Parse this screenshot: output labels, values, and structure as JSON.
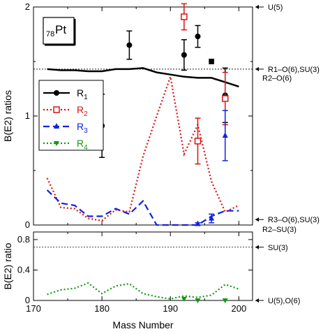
{
  "chart_data": [
    {
      "type": "line",
      "panel": "upper",
      "ylabel": "B(E2) ratios",
      "xlim": [
        170,
        202
      ],
      "ylim": [
        0,
        2
      ],
      "yticks": [
        "0",
        "1",
        "2"
      ],
      "nucleus": {
        "mass_prefix": "78",
        "symbol": "Pt"
      },
      "legend": [
        {
          "label": "R",
          "sub": "1",
          "color": "#000000"
        },
        {
          "label": "R",
          "sub": "2",
          "color": "#dd1111"
        },
        {
          "label": "R",
          "sub": "3",
          "color": "#1122dd"
        },
        {
          "label": "R",
          "sub": "4",
          "color": "#119911"
        }
      ],
      "reference_lines": [
        {
          "y": 1.43,
          "label": "R1-O(6),SU(3) R2-O(6)",
          "style": "dotted"
        }
      ],
      "right_annotations": [
        {
          "text": "U(5)",
          "y": 2.0
        },
        {
          "text": "R1–O(6),SU(3)",
          "y": 1.43
        },
        {
          "text": "R2–O(6)",
          "y": 1.36
        },
        {
          "text": "R3–O(6),SU(3)",
          "y": 0.05
        },
        {
          "text": "R2–SU(3)",
          "y": -0.05
        }
      ],
      "series": [
        {
          "name": "R1",
          "kind": "theory",
          "color": "#000000",
          "dash": "none",
          "x": [
            172,
            174,
            176,
            178,
            180,
            182,
            184,
            186,
            188,
            190,
            192,
            194,
            196,
            198,
            200
          ],
          "y": [
            1.43,
            1.42,
            1.42,
            1.41,
            1.41,
            1.43,
            1.43,
            1.44,
            1.4,
            1.38,
            1.36,
            1.35,
            1.35,
            1.31,
            1.27
          ]
        },
        {
          "name": "R2",
          "kind": "theory",
          "color": "#dd1111",
          "dash": "dot",
          "x": [
            172,
            174,
            176,
            178,
            180,
            182,
            184,
            186,
            188,
            190,
            192,
            194,
            196,
            198,
            200
          ],
          "y": [
            0.43,
            0.16,
            0.15,
            0.06,
            0.04,
            0.14,
            0.12,
            0.63,
            1.0,
            1.36,
            0.65,
            0.92,
            0.4,
            0.12,
            0.18
          ]
        },
        {
          "name": "R3",
          "kind": "theory",
          "color": "#1122dd",
          "dash": "dash",
          "x": [
            172,
            174,
            176,
            178,
            180,
            182,
            184,
            186,
            188,
            190,
            192,
            194,
            196,
            198,
            200
          ],
          "y": [
            0.32,
            0.2,
            0.18,
            0.08,
            0.08,
            0.15,
            0.1,
            0.22,
            0.0,
            0.0,
            0.0,
            0.0,
            0.08,
            0.13,
            0.13
          ]
        }
      ],
      "experiment": [
        {
          "series": "R1",
          "color": "#000000",
          "marker": "circle",
          "x": 180,
          "y": 0.91,
          "err": 0.29
        },
        {
          "series": "R1",
          "color": "#000000",
          "marker": "circle",
          "x": 184,
          "y": 1.65,
          "err": 0.13
        },
        {
          "series": "R1",
          "color": "#000000",
          "marker": "circle",
          "x": 192,
          "y": 1.56,
          "err": 0.14
        },
        {
          "series": "R1",
          "color": "#000000",
          "marker": "circle",
          "x": 194,
          "y": 1.73,
          "err": 0.1
        },
        {
          "series": "R1",
          "color": "#000000",
          "marker": "circle",
          "x": 196,
          "y": 1.5,
          "err": 0.02
        },
        {
          "series": "R1",
          "color": "#000000",
          "marker": "circle",
          "x": 198,
          "y": 1.19,
          "err": 0.25
        },
        {
          "series": "R2",
          "color": "#dd1111",
          "marker": "square-open",
          "x": 192,
          "y": 1.91,
          "err": 0.12
        },
        {
          "series": "R2",
          "color": "#dd1111",
          "marker": "square-open",
          "x": 194,
          "y": 0.77,
          "err": 0.21
        },
        {
          "series": "R2",
          "color": "#dd1111",
          "marker": "square-open",
          "x": 198,
          "y": 1.16,
          "err": 0.24
        },
        {
          "series": "R3",
          "color": "#1122dd",
          "marker": "triangle",
          "x": 194,
          "y": 0.01,
          "err": 0.01
        },
        {
          "series": "R3",
          "color": "#1122dd",
          "marker": "triangle",
          "x": 196,
          "y": 0.06,
          "err": 0.04
        },
        {
          "series": "R3",
          "color": "#1122dd",
          "marker": "triangle",
          "x": 198,
          "y": 0.82,
          "err": 0.23
        }
      ]
    },
    {
      "type": "line",
      "panel": "lower",
      "xlabel": "Mass Number",
      "ylabel": "B(E2) ratio",
      "xlim": [
        170,
        202
      ],
      "ylim": [
        0,
        0.9
      ],
      "xticks": [
        "170",
        "180",
        "190",
        "200"
      ],
      "yticks": [
        "0",
        "0.4",
        "0.8"
      ],
      "reference_lines": [
        {
          "y": 0.7,
          "label": "SU(3)",
          "style": "dotted"
        }
      ],
      "right_annotations": [
        {
          "text": "SU(3)",
          "y": 0.7
        },
        {
          "text": "U(5),O(6)",
          "y": 0.0
        }
      ],
      "series": [
        {
          "name": "R4",
          "kind": "theory",
          "color": "#119911",
          "dash": "dot",
          "x": [
            172,
            174,
            176,
            178,
            180,
            182,
            184,
            186,
            188,
            190,
            192,
            194,
            196,
            198,
            200
          ],
          "y": [
            0.08,
            0.14,
            0.16,
            0.23,
            0.09,
            0.19,
            0.22,
            0.09,
            0.05,
            0.02,
            0.06,
            0.04,
            0.07,
            0.21,
            0.15
          ]
        }
      ],
      "experiment": [
        {
          "series": "R4",
          "color": "#119911",
          "marker": "triangle-down",
          "x": 192,
          "y": 0.02,
          "err": 0.0
        },
        {
          "series": "R4",
          "color": "#119911",
          "marker": "triangle-down",
          "x": 194,
          "y": 0.0,
          "err": 0.0
        },
        {
          "series": "R4",
          "color": "#119911",
          "marker": "triangle-down",
          "x": 198,
          "y": 0.0,
          "err": 0.0
        }
      ]
    }
  ]
}
